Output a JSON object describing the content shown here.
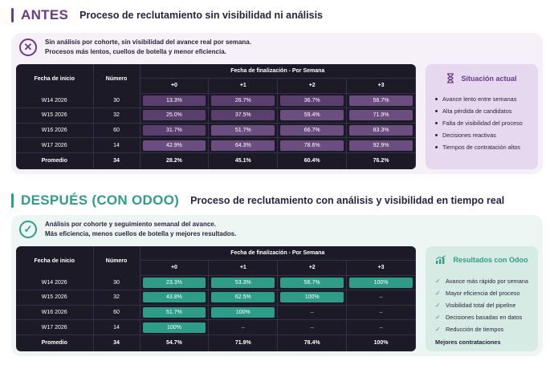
{
  "before": {
    "label": "ANTES",
    "title": "Proceso de reclutamiento sin visibilidad ni análisis",
    "note_line1": "Sin análisis por cohorte, sin visibilidad del avance real por semana.",
    "note_line2": "Procesos más lentos, cuellos de botella y menor eficiencia.",
    "icon": "x-circle-icon",
    "table": {
      "col_start": "Fecha de inicio",
      "col_number": "Número",
      "col_group": "Fecha de finalización - Por Semana",
      "periods": [
        "+0",
        "+1",
        "+2",
        "+3"
      ],
      "rows": [
        {
          "week": "W14 2026",
          "n": "30",
          "v": [
            "13.3%",
            "26.7%",
            "36.7%",
            "56.7%"
          ]
        },
        {
          "week": "W15 2026",
          "n": "32",
          "v": [
            "25.0%",
            "37.5%",
            "59.4%",
            "71.9%"
          ]
        },
        {
          "week": "W16 2026",
          "n": "60",
          "v": [
            "31.7%",
            "51.7%",
            "66.7%",
            "83.3%"
          ]
        },
        {
          "week": "W17 2026",
          "n": "14",
          "v": [
            "42.9%",
            "64.3%",
            "78.6%",
            "92.9%"
          ]
        }
      ],
      "avg": {
        "label": "Promedio",
        "n": "34",
        "v": [
          "28.2%",
          "45.1%",
          "60.4%",
          "76.2%"
        ]
      }
    },
    "side": {
      "title": "Situación actual",
      "icon": "hourglass-icon",
      "items": [
        "Avance lento entre semanas",
        "Alta pérdida de candidatos",
        "Falta de visibilidad del proceso",
        "Decisiones reactivas",
        "Tiempos de contratación altos"
      ]
    },
    "accent": "#6b3a8c"
  },
  "after": {
    "label": "DESPUÉS (CON ODOO)",
    "title": "Proceso de reclutamiento con análisis y visibilidad en tiempo real",
    "note_line1": "Análisis por cohorte y seguimiento semanal del avance.",
    "note_line2": "Más eficiencia, menos cuellos de botella y mejores resultados.",
    "icon": "check-circle-icon",
    "table": {
      "col_start": "Fecha de inicio",
      "col_number": "Número",
      "col_group": "Fecha de finalización - Por Semana",
      "periods": [
        "+0",
        "+1",
        "+2",
        "+3"
      ],
      "rows": [
        {
          "week": "W14 2026",
          "n": "30",
          "v": [
            "23.3%",
            "53.3%",
            "56.7%",
            "100%"
          ]
        },
        {
          "week": "W15 2026",
          "n": "32",
          "v": [
            "43.8%",
            "62.5%",
            "100%",
            "–"
          ]
        },
        {
          "week": "W16 2026",
          "n": "60",
          "v": [
            "51.7%",
            "100%",
            "–",
            "–"
          ]
        },
        {
          "week": "W17 2026",
          "n": "14",
          "v": [
            "100%",
            "–",
            "–",
            "–"
          ]
        }
      ],
      "avg": {
        "label": "Promedio",
        "n": "34",
        "v": [
          "54.7%",
          "71.9%",
          "78.4%",
          "100%"
        ]
      }
    },
    "side": {
      "title": "Resultados con Odoo",
      "icon": "growth-chart-icon",
      "items": [
        "Avance más rápido por semana",
        "Mayor eficiencia del proceso",
        "Visibilidad total del pipeline",
        "Decisiones basadas en datos",
        "Reducción de tiempos"
      ],
      "footer": "Mejores contrataciones"
    },
    "accent": "#2e9d8a"
  }
}
